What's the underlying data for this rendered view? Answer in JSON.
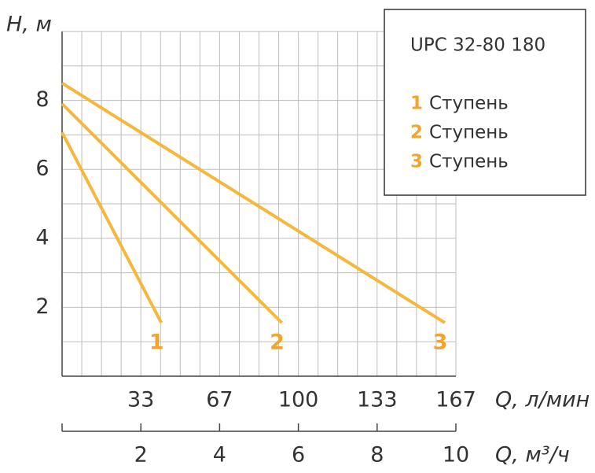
{
  "chart_data": {
    "type": "line",
    "title": "UPC 32-80 180",
    "y_label": "H, м",
    "x_label": "Q, л/мин",
    "x2_label": "Q, м³/ч",
    "legend_text": "Ступень",
    "series": [
      {
        "name": "1",
        "color": "#f5b83d",
        "x": [
          0,
          42
        ],
        "values": [
          7.07,
          1.55
        ]
      },
      {
        "name": "2",
        "color": "#f5b83d",
        "x": [
          0,
          93
        ],
        "values": [
          7.9,
          1.55
        ]
      },
      {
        "name": "3",
        "color": "#f5b83d",
        "x": [
          0,
          162
        ],
        "values": [
          8.5,
          1.55
        ]
      }
    ],
    "label_color": "#f0a62e",
    "xlim": [
      0,
      166.67
    ],
    "xticks": [
      {
        "value": 33.33,
        "label": "33"
      },
      {
        "value": 66.67,
        "label": "67"
      },
      {
        "value": 100,
        "label": "100"
      },
      {
        "value": 133.33,
        "label": "133"
      },
      {
        "value": 166.67,
        "label": "167"
      }
    ],
    "xgrid": [
      8.33,
      16.67,
      25,
      33.33,
      41.67,
      50,
      58.33,
      66.67,
      75,
      83.33,
      91.67,
      100,
      108.33,
      116.67,
      125,
      133.33,
      141.67,
      150,
      158.33,
      166.67
    ],
    "x2lim": [
      0,
      10
    ],
    "x2ticks": [
      2,
      4,
      6,
      8,
      10
    ],
    "ylim": [
      0,
      10
    ],
    "yticks": [
      2,
      4,
      6,
      8
    ],
    "ygrid": [
      1,
      2,
      3,
      4,
      5,
      6,
      7,
      8,
      9,
      10
    ],
    "grid": true
  }
}
